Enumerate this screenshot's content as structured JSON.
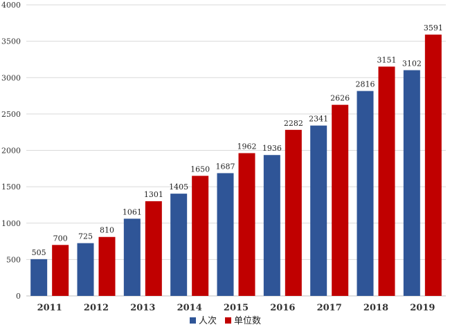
{
  "chart_data": {
    "type": "bar",
    "categories": [
      "2011",
      "2012",
      "2013",
      "2014",
      "2015",
      "2016",
      "2017",
      "2018",
      "2019"
    ],
    "series": [
      {
        "name": "人次",
        "color": "#2F5597",
        "values": [
          505,
          725,
          1061,
          1405,
          1687,
          1936,
          2341,
          2816,
          3102
        ]
      },
      {
        "name": "单位数",
        "color": "#C00000",
        "values": [
          700,
          810,
          1301,
          1650,
          1962,
          2282,
          2626,
          3151,
          3591
        ]
      }
    ],
    "ylim": [
      0,
      4000
    ],
    "yticks": [
      0,
      500,
      1000,
      1500,
      2000,
      2500,
      3000,
      3500,
      4000
    ],
    "grid": true,
    "legend": "bottom-center"
  }
}
